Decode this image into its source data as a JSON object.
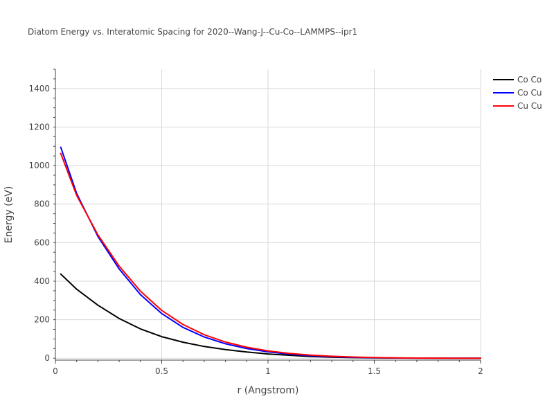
{
  "chart_data": {
    "type": "line",
    "title": "Diatom Energy vs. Interatomic Spacing for 2020--Wang-J--Cu-Co--LAMMPS--ipr1",
    "xlabel": "r (Angstrom)",
    "ylabel": "Energy (eV)",
    "xlim": [
      0,
      2
    ],
    "ylim": [
      -10,
      1500
    ],
    "x_ticks": [
      0,
      0.5,
      1,
      1.5,
      2
    ],
    "x_tick_labels": [
      "0",
      "0.5",
      "1",
      "1.5",
      "2"
    ],
    "y_ticks": [
      0,
      200,
      400,
      600,
      800,
      1000,
      1200,
      1400
    ],
    "y_tick_labels": [
      "0",
      "200",
      "400",
      "600",
      "800",
      "1000",
      "1200",
      "1400"
    ],
    "grid": true,
    "legend_position": "top-right",
    "x": [
      0.025,
      0.1,
      0.2,
      0.3,
      0.4,
      0.5,
      0.6,
      0.7,
      0.8,
      0.9,
      1.0,
      1.1,
      1.2,
      1.3,
      1.4,
      1.5,
      1.6,
      1.7,
      1.8,
      1.9,
      2.0
    ],
    "series": [
      {
        "name": "Co Co",
        "color": "#000000",
        "values": [
          437,
          358,
          275,
          206,
          152,
          112,
          83,
          61,
          45,
          32,
          22,
          15,
          9,
          5,
          3,
          1.5,
          0.8,
          0.4,
          0.2,
          0.1,
          0
        ]
      },
      {
        "name": "Co Cu",
        "color": "#0000ff",
        "values": [
          1095,
          855,
          632,
          463,
          330,
          232,
          160,
          110,
          75,
          50,
          33,
          21,
          13,
          8,
          4.5,
          2.5,
          1.2,
          0.6,
          0.3,
          0.1,
          0
        ]
      },
      {
        "name": "Cu Cu",
        "color": "#ff0000",
        "values": [
          1063,
          845,
          640,
          478,
          348,
          248,
          175,
          122,
          84,
          57,
          38,
          25,
          16,
          10,
          6,
          3.5,
          1.8,
          0.8,
          0.3,
          0.1,
          0
        ]
      }
    ]
  }
}
